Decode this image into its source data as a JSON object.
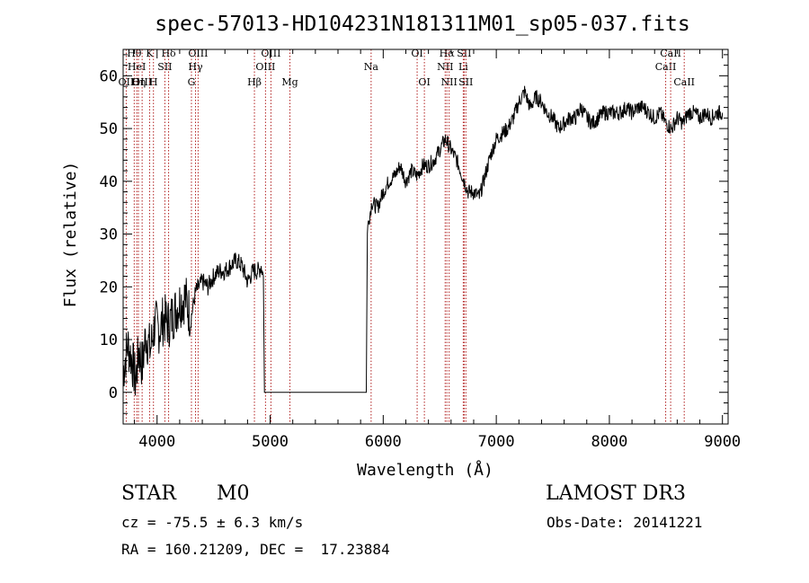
{
  "chart_data": {
    "type": "line",
    "title": "spec-57013-HD104231N181311M01_sp05-037.fits",
    "xlabel": "Wavelength (Å)",
    "ylabel": "Flux (relative)",
    "xlim": [
      3700,
      9050
    ],
    "ylim": [
      -6,
      65
    ],
    "x_ticks": [
      4000,
      5000,
      6000,
      7000,
      8000,
      9000
    ],
    "y_ticks": [
      0,
      10,
      20,
      30,
      40,
      50,
      60
    ],
    "grid": false,
    "colors": {
      "spectrum": "#000000",
      "lines": "#b22222",
      "axes": "#000000"
    },
    "spectrum_anchor_points": [
      [
        3700,
        4
      ],
      [
        3740,
        9
      ],
      [
        3780,
        6
      ],
      [
        3810,
        2
      ],
      [
        3840,
        8
      ],
      [
        3870,
        5
      ],
      [
        3900,
        11
      ],
      [
        3940,
        8
      ],
      [
        3980,
        13
      ],
      [
        4020,
        12
      ],
      [
        4060,
        14
      ],
      [
        4100,
        13
      ],
      [
        4150,
        15
      ],
      [
        4200,
        17
      ],
      [
        4250,
        18
      ],
      [
        4300,
        14
      ],
      [
        4340,
        19
      ],
      [
        4400,
        21
      ],
      [
        4450,
        20
      ],
      [
        4500,
        22
      ],
      [
        4550,
        23
      ],
      [
        4600,
        23
      ],
      [
        4650,
        24
      ],
      [
        4700,
        25
      ],
      [
        4750,
        24
      ],
      [
        4800,
        21
      ],
      [
        4850,
        23
      ],
      [
        4900,
        23
      ],
      [
        4920,
        24
      ],
      [
        4940,
        22
      ],
      [
        4950,
        0
      ],
      [
        5850,
        0
      ],
      [
        5860,
        31
      ],
      [
        5900,
        36
      ],
      [
        5950,
        35
      ],
      [
        6000,
        38
      ],
      [
        6050,
        40
      ],
      [
        6100,
        41
      ],
      [
        6150,
        43
      ],
      [
        6200,
        40
      ],
      [
        6250,
        42
      ],
      [
        6300,
        41
      ],
      [
        6350,
        43
      ],
      [
        6400,
        43
      ],
      [
        6450,
        44
      ],
      [
        6500,
        46
      ],
      [
        6550,
        48
      ],
      [
        6600,
        46
      ],
      [
        6650,
        44
      ],
      [
        6700,
        41
      ],
      [
        6750,
        38
      ],
      [
        6800,
        38
      ],
      [
        6850,
        37
      ],
      [
        6900,
        41
      ],
      [
        6950,
        45
      ],
      [
        7000,
        48
      ],
      [
        7050,
        49
      ],
      [
        7100,
        50
      ],
      [
        7150,
        52
      ],
      [
        7200,
        55
      ],
      [
        7250,
        57
      ],
      [
        7300,
        54
      ],
      [
        7350,
        56
      ],
      [
        7400,
        55
      ],
      [
        7450,
        53
      ],
      [
        7500,
        52
      ],
      [
        7550,
        50
      ],
      [
        7600,
        51
      ],
      [
        7650,
        52
      ],
      [
        7700,
        52
      ],
      [
        7750,
        54
      ],
      [
        7800,
        52
      ],
      [
        7850,
        51
      ],
      [
        7900,
        52
      ],
      [
        7950,
        53
      ],
      [
        8000,
        53
      ],
      [
        8050,
        53
      ],
      [
        8100,
        53
      ],
      [
        8150,
        54
      ],
      [
        8200,
        53
      ],
      [
        8250,
        54
      ],
      [
        8300,
        54
      ],
      [
        8350,
        53
      ],
      [
        8400,
        52
      ],
      [
        8450,
        53
      ],
      [
        8500,
        51
      ],
      [
        8550,
        50
      ],
      [
        8600,
        52
      ],
      [
        8650,
        51
      ],
      [
        8700,
        53
      ],
      [
        8750,
        53
      ],
      [
        8800,
        52
      ],
      [
        8850,
        53
      ],
      [
        8900,
        52
      ],
      [
        8950,
        53
      ],
      [
        9000,
        53
      ]
    ],
    "spectral_lines": [
      {
        "label": "OII",
        "wavelength": 3727,
        "row": 3
      },
      {
        "label": "Hθ",
        "wavelength": 3798,
        "row": 1
      },
      {
        "label": "HeI",
        "wavelength": 3820,
        "row": 2
      },
      {
        "label": "Hη",
        "wavelength": 3835,
        "row": 3
      },
      {
        "label": "OIII",
        "wavelength": 3868,
        "row": 3
      },
      {
        "label": "K",
        "wavelength": 3934,
        "row": 1
      },
      {
        "label": "H",
        "wavelength": 3968,
        "row": 3
      },
      {
        "label": "SII",
        "wavelength": 4069,
        "row": 2
      },
      {
        "label": "Hδ",
        "wavelength": 4102,
        "row": 1
      },
      {
        "label": "G",
        "wavelength": 4304,
        "row": 3
      },
      {
        "label": "Hγ",
        "wavelength": 4340,
        "row": 2
      },
      {
        "label": "OIII",
        "wavelength": 4363,
        "row": 1
      },
      {
        "label": "Hβ",
        "wavelength": 4861,
        "row": 3
      },
      {
        "label": "OIII",
        "wavelength": 4959,
        "row": 2
      },
      {
        "label": "OIII",
        "wavelength": 5007,
        "row": 1
      },
      {
        "label": "Mg",
        "wavelength": 5175,
        "row": 3
      },
      {
        "label": "Na",
        "wavelength": 5893,
        "row": 2
      },
      {
        "label": "OI",
        "wavelength": 6300,
        "row": 1
      },
      {
        "label": "OI",
        "wavelength": 6364,
        "row": 3
      },
      {
        "label": "NII",
        "wavelength": 6548,
        "row": 2
      },
      {
        "label": "Hα",
        "wavelength": 6563,
        "row": 1
      },
      {
        "label": "NII",
        "wavelength": 6583,
        "row": 3
      },
      {
        "label": "SII",
        "wavelength": 6716,
        "row": 1
      },
      {
        "label": "Li",
        "wavelength": 6708,
        "row": 2
      },
      {
        "label": "SII",
        "wavelength": 6731,
        "row": 3
      },
      {
        "label": "CaII",
        "wavelength": 8498,
        "row": 2
      },
      {
        "label": "CaII",
        "wavelength": 8542,
        "row": 1
      },
      {
        "label": "CaII",
        "wavelength": 8662,
        "row": 3
      }
    ]
  },
  "info": {
    "object_type": "STAR",
    "subclass": "M0",
    "survey": "LAMOST DR3",
    "cz": "cz = -75.5 ± 6.3 km/s",
    "obs_date": "Obs-Date: 20141221",
    "coords": "RA = 160.21209, DEC =  17.23884"
  }
}
